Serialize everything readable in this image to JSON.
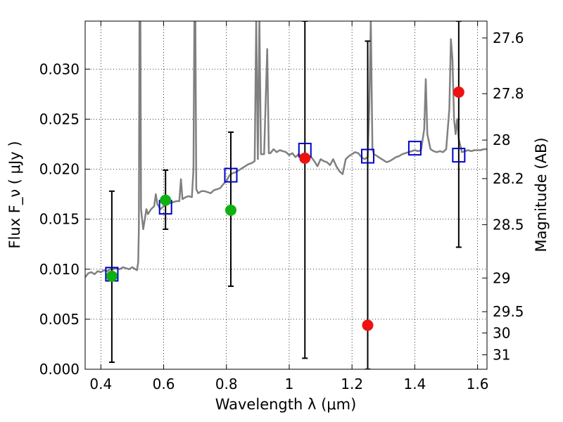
{
  "chart_data": {
    "type": "scatter",
    "xlabel": "Wavelength  λ (μm)",
    "ylabel": "Flux  F_ν  ( μJy )",
    "ylabel_right": "Magnitude (AB)",
    "xlim": [
      0.35,
      1.63
    ],
    "ylim": [
      0.0,
      0.0348
    ],
    "x_ticks": [
      0.4,
      0.6,
      0.8,
      1.0,
      1.2,
      1.4,
      1.6
    ],
    "x_tick_labels": [
      "0.4",
      "0.6",
      "0.8",
      "1",
      "1.2",
      "1.4",
      "1.6"
    ],
    "y_ticks": [
      0.0,
      0.005,
      0.01,
      0.015,
      0.02,
      0.025,
      0.03
    ],
    "y_tick_labels": [
      "0.000",
      "0.005",
      "0.010",
      "0.015",
      "0.020",
      "0.025",
      "0.030"
    ],
    "right_ticks": [
      {
        "label": "27.6",
        "mag": 27.6
      },
      {
        "label": "27.8",
        "mag": 27.8
      },
      {
        "label": "28",
        "mag": 28.0
      },
      {
        "label": "28.2",
        "mag": 28.2
      },
      {
        "label": "28.5",
        "mag": 28.5
      },
      {
        "label": "29",
        "mag": 29.0
      },
      {
        "label": "29.5",
        "mag": 29.5
      },
      {
        "label": "30",
        "mag": 30.0
      },
      {
        "label": "31",
        "mag": 31.0
      }
    ],
    "grid": true,
    "colors": {
      "model_spectrum": "#808080",
      "model_photometry": "#0000cc",
      "green_points": "#10b010",
      "red_points": "#ee1111",
      "error_bars": "#000000"
    },
    "model_spectrum": [
      [
        0.35,
        0.0092
      ],
      [
        0.36,
        0.0096
      ],
      [
        0.37,
        0.0097
      ],
      [
        0.38,
        0.0095
      ],
      [
        0.39,
        0.0098
      ],
      [
        0.4,
        0.0097
      ],
      [
        0.41,
        0.0099
      ],
      [
        0.42,
        0.0098
      ],
      [
        0.43,
        0.01
      ],
      [
        0.44,
        0.01
      ],
      [
        0.45,
        0.0101
      ],
      [
        0.46,
        0.01
      ],
      [
        0.47,
        0.0102
      ],
      [
        0.48,
        0.0101
      ],
      [
        0.49,
        0.01
      ],
      [
        0.5,
        0.0102
      ],
      [
        0.51,
        0.01
      ],
      [
        0.515,
        0.0099
      ],
      [
        0.519,
        0.0107
      ],
      [
        0.521,
        0.014
      ],
      [
        0.523,
        0.035
      ],
      [
        0.526,
        0.035
      ],
      [
        0.528,
        0.016
      ],
      [
        0.535,
        0.014
      ],
      [
        0.54,
        0.015
      ],
      [
        0.545,
        0.016
      ],
      [
        0.55,
        0.0155
      ],
      [
        0.56,
        0.016
      ],
      [
        0.57,
        0.0163
      ],
      [
        0.575,
        0.0175
      ],
      [
        0.58,
        0.0165
      ],
      [
        0.59,
        0.016
      ],
      [
        0.6,
        0.0163
      ],
      [
        0.61,
        0.0165
      ],
      [
        0.62,
        0.0166
      ],
      [
        0.63,
        0.0167
      ],
      [
        0.64,
        0.0168
      ],
      [
        0.65,
        0.0168
      ],
      [
        0.655,
        0.019
      ],
      [
        0.66,
        0.017
      ],
      [
        0.67,
        0.0172
      ],
      [
        0.68,
        0.0173
      ],
      [
        0.69,
        0.0172
      ],
      [
        0.695,
        0.02
      ],
      [
        0.698,
        0.035
      ],
      [
        0.701,
        0.035
      ],
      [
        0.704,
        0.018
      ],
      [
        0.71,
        0.0176
      ],
      [
        0.72,
        0.0178
      ],
      [
        0.73,
        0.0178
      ],
      [
        0.74,
        0.0177
      ],
      [
        0.75,
        0.0176
      ],
      [
        0.76,
        0.0179
      ],
      [
        0.77,
        0.018
      ],
      [
        0.78,
        0.0181
      ],
      [
        0.79,
        0.0185
      ],
      [
        0.8,
        0.0188
      ],
      [
        0.81,
        0.0194
      ],
      [
        0.82,
        0.0196
      ],
      [
        0.83,
        0.0197
      ],
      [
        0.84,
        0.0199
      ],
      [
        0.85,
        0.0201
      ],
      [
        0.86,
        0.0203
      ],
      [
        0.87,
        0.0205
      ],
      [
        0.88,
        0.0206
      ],
      [
        0.89,
        0.0208
      ],
      [
        0.895,
        0.035
      ],
      [
        0.9,
        0.021
      ],
      [
        0.905,
        0.035
      ],
      [
        0.91,
        0.0215
      ],
      [
        0.92,
        0.0215
      ],
      [
        0.93,
        0.032
      ],
      [
        0.935,
        0.0216
      ],
      [
        0.94,
        0.0216
      ],
      [
        0.95,
        0.022
      ],
      [
        0.96,
        0.0217
      ],
      [
        0.97,
        0.0219
      ],
      [
        0.98,
        0.0218
      ],
      [
        0.99,
        0.0217
      ],
      [
        1.0,
        0.0214
      ],
      [
        1.01,
        0.0216
      ],
      [
        1.02,
        0.0212
      ],
      [
        1.03,
        0.0215
      ],
      [
        1.04,
        0.0213
      ],
      [
        1.05,
        0.021
      ],
      [
        1.06,
        0.0211
      ],
      [
        1.07,
        0.0212
      ],
      [
        1.08,
        0.0208
      ],
      [
        1.09,
        0.0203
      ],
      [
        1.1,
        0.021
      ],
      [
        1.11,
        0.0208
      ],
      [
        1.12,
        0.0207
      ],
      [
        1.13,
        0.0204
      ],
      [
        1.14,
        0.021
      ],
      [
        1.15,
        0.0203
      ],
      [
        1.16,
        0.0198
      ],
      [
        1.17,
        0.0195
      ],
      [
        1.18,
        0.021
      ],
      [
        1.19,
        0.0213
      ],
      [
        1.2,
        0.0215
      ],
      [
        1.21,
        0.0217
      ],
      [
        1.22,
        0.0216
      ],
      [
        1.23,
        0.0212
      ],
      [
        1.24,
        0.021
      ],
      [
        1.25,
        0.0212
      ],
      [
        1.255,
        0.026
      ],
      [
        1.26,
        0.035
      ],
      [
        1.265,
        0.022
      ],
      [
        1.27,
        0.0215
      ],
      [
        1.28,
        0.0213
      ],
      [
        1.29,
        0.0211
      ],
      [
        1.3,
        0.0209
      ],
      [
        1.31,
        0.0207
      ],
      [
        1.32,
        0.0208
      ],
      [
        1.33,
        0.021
      ],
      [
        1.34,
        0.0212
      ],
      [
        1.35,
        0.0213
      ],
      [
        1.36,
        0.0215
      ],
      [
        1.37,
        0.0216
      ],
      [
        1.38,
        0.0217
      ],
      [
        1.39,
        0.0218
      ],
      [
        1.4,
        0.0219
      ],
      [
        1.41,
        0.0218
      ],
      [
        1.42,
        0.0219
      ],
      [
        1.43,
        0.024
      ],
      [
        1.435,
        0.029
      ],
      [
        1.44,
        0.0235
      ],
      [
        1.45,
        0.022
      ],
      [
        1.46,
        0.0218
      ],
      [
        1.47,
        0.0217
      ],
      [
        1.48,
        0.0218
      ],
      [
        1.49,
        0.0217
      ],
      [
        1.5,
        0.022
      ],
      [
        1.51,
        0.026
      ],
      [
        1.515,
        0.033
      ],
      [
        1.52,
        0.031
      ],
      [
        1.525,
        0.025
      ],
      [
        1.53,
        0.0235
      ],
      [
        1.535,
        0.025
      ],
      [
        1.54,
        0.023
      ],
      [
        1.55,
        0.0217
      ],
      [
        1.56,
        0.0218
      ],
      [
        1.57,
        0.0219
      ],
      [
        1.58,
        0.0218
      ],
      [
        1.59,
        0.0219
      ],
      [
        1.6,
        0.0219
      ],
      [
        1.61,
        0.0219
      ],
      [
        1.62,
        0.022
      ],
      [
        1.63,
        0.022
      ]
    ],
    "model_photometry": [
      {
        "x": 0.435,
        "y": 0.0095
      },
      {
        "x": 0.606,
        "y": 0.0162
      },
      {
        "x": 0.814,
        "y": 0.0194
      },
      {
        "x": 1.05,
        "y": 0.0219
      },
      {
        "x": 1.25,
        "y": 0.0213
      },
      {
        "x": 1.4,
        "y": 0.0221
      },
      {
        "x": 1.54,
        "y": 0.0214
      }
    ],
    "measurements": [
      {
        "x": 0.435,
        "y": 0.0093,
        "ylo": 0.0007,
        "yhi": 0.0178,
        "group": "green"
      },
      {
        "x": 0.606,
        "y": 0.0169,
        "ylo": 0.014,
        "yhi": 0.0199,
        "group": "green"
      },
      {
        "x": 0.814,
        "y": 0.0159,
        "ylo": 0.0083,
        "yhi": 0.0237,
        "group": "green"
      },
      {
        "x": 1.05,
        "y": 0.0211,
        "ylo": 0.0011,
        "yhi": 0.0348,
        "group": "red"
      },
      {
        "x": 1.25,
        "y": 0.0044,
        "ylo": 0.0,
        "yhi": 0.0328,
        "group": "red"
      },
      {
        "x": 1.54,
        "y": 0.0277,
        "ylo": 0.0122,
        "yhi": 0.0348,
        "group": "red"
      }
    ]
  }
}
